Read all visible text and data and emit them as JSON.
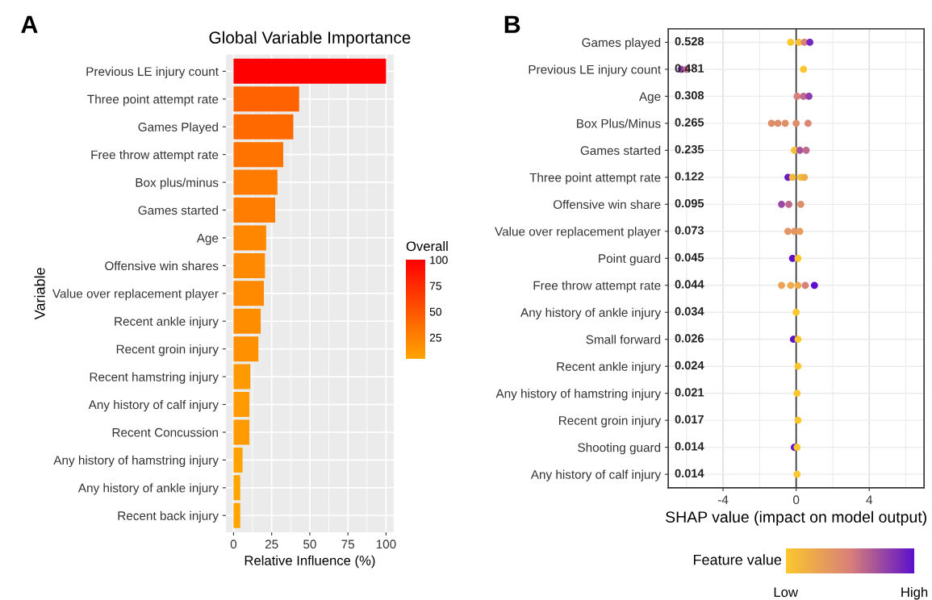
{
  "chart_data": [
    {
      "type": "bar",
      "orientation": "horizontal",
      "title": "Global Variable Importance",
      "xlabel": "Relative Influence (%)",
      "ylabel": "Variable",
      "annotations": [
        "A"
      ],
      "categories": [
        "Previous LE injury count",
        "Three point attempt rate",
        "Games Played",
        "Free throw attempt rate",
        "Box plus/minus",
        "Games started",
        "Age",
        "Offensive win shares",
        "Value over replacement player",
        "Recent ankle injury",
        "Recent groin injury",
        "Recent hamstring injury",
        "Any history of calf injury",
        "Recent Concussion",
        "Any history of hamstring injury",
        "Any history of ankle injury",
        "Recent back injury"
      ],
      "values": [
        100,
        43,
        39.2,
        32.6,
        28.8,
        27.3,
        21.4,
        20.6,
        19.9,
        17.8,
        16.3,
        11,
        10.4,
        10.4,
        5.9,
        4.4,
        4.4
      ],
      "colors": [
        "#ff0000",
        "#ff6200",
        "#ff6900",
        "#ff7400",
        "#ff7b00",
        "#ff7d00",
        "#ff8700",
        "#ff8900",
        "#ff8a00",
        "#ff8d00",
        "#ff9000",
        "#ff9900",
        "#ff9a00",
        "#ff9a00",
        "#ffa200",
        "#ffa500",
        "#ffa500"
      ],
      "clabel": "Overall",
      "clim": [
        4.4,
        100
      ],
      "cticks": [
        25,
        50,
        75,
        100
      ],
      "xlim": [
        -5,
        105
      ],
      "xticks": [
        0,
        25,
        50,
        75,
        100
      ],
      "grid": true
    },
    {
      "type": "scatter",
      "orientation": "horizontal",
      "xlabel": "SHAP value (impact on model output)",
      "annotations": [
        "B",
        "0.528",
        "0.481",
        "0.308",
        "0.265",
        "0.235",
        "0.122",
        "0.095",
        "0.073",
        "0.045",
        "0.044",
        "0.034",
        "0.026",
        "0.024",
        "0.021",
        "0.017",
        "0.014",
        "0.014"
      ],
      "categories": [
        "Games played",
        "Previous LE injury count",
        "Age",
        "Box Plus/Minus",
        "Games started",
        "Three point attempt rate",
        "Offensive win share",
        "Value over replacement player",
        "Point guard",
        "Free throw attempt rate",
        "Any history of ankle injury",
        "Small forward",
        "Recent ankle injury",
        "Any history of hamstring injury",
        "Recent groin injury",
        "Shooting guard",
        "Any history of calf injury"
      ],
      "series": [
        {
          "values": [
            -0.3,
            -6.3,
            0.05,
            -1.35,
            -0.1,
            -0.45,
            -0.8,
            -0.45,
            -0.2,
            -0.8,
            0,
            -0.15,
            0.1,
            0.05,
            0.1,
            -0.1,
            0.05
          ],
          "colors": [
            "#fbc72c",
            "#8e3dab",
            "#d8807a",
            "#df8e6a",
            "#f8c034",
            "#681bc4",
            "#9a48a3",
            "#e39563",
            "#5c10cc",
            "#eaa453",
            "#fbc72c",
            "#5c10cc",
            "#fbc72c",
            "#fbc72c",
            "#fbc72c",
            "#5c10cc",
            "#fbc72c"
          ]
        },
        {
          "values": [
            0.15,
            -6.0,
            0.4,
            -1.0,
            0.2,
            -0.2,
            -0.4,
            -0.1,
            0.1,
            -0.3,
            null,
            0.1,
            null,
            null,
            null,
            0.05,
            null
          ],
          "colors": [
            "#f8c034",
            "#bf6a8a",
            "#bf6a8a",
            "#df8e6a",
            "#a6539b",
            "#f4b93c",
            "#bf6a8a",
            "#e39563",
            "#fbc72c",
            "#edab4b",
            null,
            "#fbc72c",
            null,
            null,
            null,
            "#fbc72c",
            null
          ]
        },
        {
          "values": [
            0.45,
            0.4,
            0.7,
            -0.6,
            0.55,
            0.25,
            0.25,
            0.2,
            null,
            0.1,
            null,
            null,
            null,
            null,
            null,
            null,
            null
          ],
          "colors": [
            "#d8807a",
            "#fbc72c",
            "#8e3dab",
            "#df8e6a",
            "#bf6a8a",
            "#f8c034",
            "#df8e6a",
            "#e69c5b",
            null,
            "#edab4b",
            null,
            null,
            null,
            null,
            null,
            null,
            null
          ]
        },
        {
          "values": [
            0.75,
            null,
            null,
            0,
            null,
            0.45,
            null,
            null,
            null,
            0.5,
            null,
            null,
            null,
            null,
            null,
            null,
            null
          ],
          "colors": [
            "#7526bc",
            null,
            null,
            "#df8e6a",
            null,
            "#edab4b",
            null,
            null,
            null,
            "#d8807a",
            null,
            null,
            null,
            null,
            null,
            null,
            null
          ]
        },
        {
          "values": [
            null,
            null,
            null,
            0.65,
            null,
            null,
            null,
            null,
            null,
            1.0,
            null,
            null,
            null,
            null,
            null,
            null,
            null
          ],
          "colors": [
            null,
            null,
            null,
            "#dc8772",
            null,
            null,
            null,
            null,
            null,
            "#5c10cc",
            null,
            null,
            null,
            null,
            null,
            null,
            null
          ]
        }
      ],
      "colors": [
        "#fbc72c",
        "#d8807a",
        "#5c10cc"
      ],
      "clabel": "Feature value",
      "clim": [
        0,
        1
      ],
      "cticks": [
        {
          "value": 0,
          "label": "Low"
        },
        {
          "value": 1,
          "label": "High"
        }
      ],
      "ref_lines": [
        {
          "axis": "x",
          "value": 0,
          "color": "#333333"
        }
      ],
      "xlim": [
        -7,
        7
      ],
      "xticks": [
        -4,
        0,
        4
      ],
      "grid": true,
      "marker": "circle"
    }
  ]
}
